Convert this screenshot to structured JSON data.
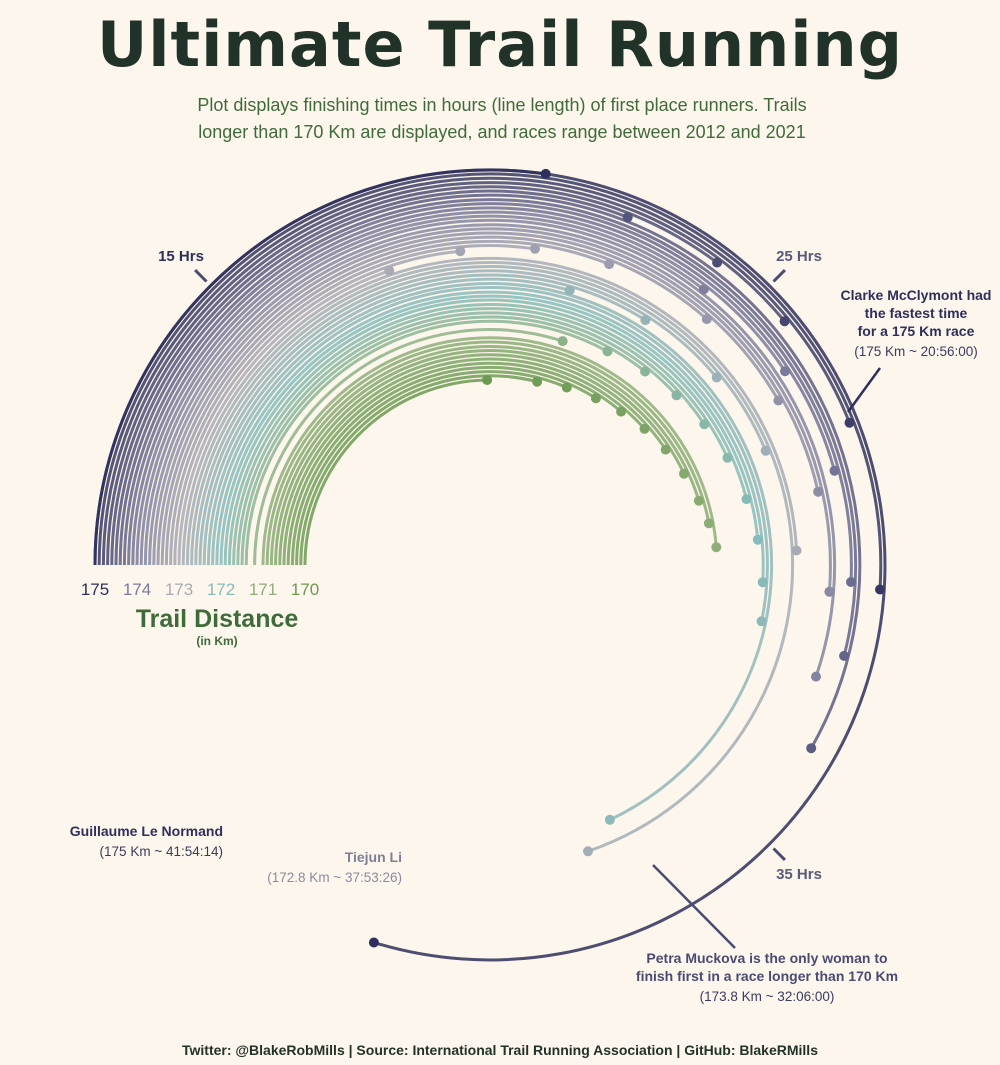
{
  "title": "Ultimate Trail Running",
  "subtitle_lines": [
    "Plot displays finishing times in hours (line length) of first place runners. Trails",
    "longer than 170 Km are displayed, and races range between 2012 and 2021"
  ],
  "caption": "Twitter: @BlakeRobMills | Source: International Trail Running Association | GitHub: BlakeRMills",
  "colors": {
    "background": "#fdf6ec",
    "title": "#213328",
    "green": "#6b9a52",
    "dist_palette": [
      "#6b9a52",
      "#8fae7a",
      "#85bcbc",
      "#a9aab4",
      "#7a7b9c",
      "#2e2f5c"
    ]
  },
  "chart_data": {
    "type": "radial-arc",
    "title": "Ultimate Trail Running",
    "axis_title": "Trail Distance",
    "axis_subtitle": "(in Km)",
    "distance_ticks": [
      "175",
      "174",
      "173",
      "172",
      "171",
      "170"
    ],
    "hour_ticks": [
      {
        "hours": 15,
        "label": "15 Hrs"
      },
      {
        "hours": 25,
        "label": "25 Hrs"
      },
      {
        "hours": 35,
        "label": "35 Hrs"
      }
    ],
    "series": [
      {
        "distance_km": 170.0,
        "hours": 19.9
      },
      {
        "distance_km": 170.1,
        "hours": 21.6
      },
      {
        "distance_km": 170.2,
        "hours": 22.6
      },
      {
        "distance_km": 170.3,
        "hours": 23.6
      },
      {
        "distance_km": 170.4,
        "hours": 24.5
      },
      {
        "distance_km": 170.5,
        "hours": 25.4
      },
      {
        "distance_km": 170.6,
        "hours": 26.3
      },
      {
        "distance_km": 170.7,
        "hours": 27.2
      },
      {
        "distance_km": 170.8,
        "hours": 28.1
      },
      {
        "distance_km": 170.9,
        "hours": 28.8
      },
      {
        "distance_km": 171.0,
        "hours": 29.5
      },
      {
        "distance_km": 171.2,
        "hours": 22.0
      },
      {
        "distance_km": 171.4,
        "hours": 23.2
      },
      {
        "distance_km": 171.5,
        "hours": 24.3
      },
      {
        "distance_km": 171.6,
        "hours": 25.3
      },
      {
        "distance_km": 171.7,
        "hours": 26.3
      },
      {
        "distance_km": 171.8,
        "hours": 27.3
      },
      {
        "distance_km": 171.9,
        "hours": 28.4
      },
      {
        "distance_km": 172.0,
        "hours": 29.4
      },
      {
        "distance_km": 172.1,
        "hours": 30.4
      },
      {
        "distance_km": 172.2,
        "hours": 31.3
      },
      {
        "distance_km": 172.3,
        "hours": 37.2
      },
      {
        "distance_km": 172.4,
        "hours": 21.8
      },
      {
        "distance_km": 172.5,
        "hours": 23.6
      },
      {
        "distance_km": 172.6,
        "hours": 25.6
      },
      {
        "distance_km": 172.7,
        "hours": 27.5
      },
      {
        "distance_km": 172.8,
        "hours": 37.9
      },
      {
        "distance_km": 172.9,
        "hours": 29.7
      },
      {
        "distance_km": 173.0,
        "hours": 17.9
      },
      {
        "distance_km": 173.1,
        "hours": 19.4
      },
      {
        "distance_km": 173.2,
        "hours": 20.9
      },
      {
        "distance_km": 173.3,
        "hours": 22.4
      },
      {
        "distance_km": 173.4,
        "hours": 24.6
      },
      {
        "distance_km": 173.5,
        "hours": 26.7
      },
      {
        "distance_km": 173.6,
        "hours": 28.6
      },
      {
        "distance_km": 173.7,
        "hours": 30.5
      },
      {
        "distance_km": 173.8,
        "hours": 32.1
      },
      {
        "distance_km": 173.9,
        "hours": 24.2
      },
      {
        "distance_km": 174.0,
        "hours": 26.3
      },
      {
        "distance_km": 174.1,
        "hours": 28.3
      },
      {
        "distance_km": 174.2,
        "hours": 30.3
      },
      {
        "distance_km": 174.3,
        "hours": 31.6
      },
      {
        "distance_km": 174.4,
        "hours": 33.3
      },
      {
        "distance_km": 174.5,
        "hours": 22.4
      },
      {
        "distance_km": 174.6,
        "hours": 24.1
      },
      {
        "distance_km": 174.7,
        "hours": 25.6
      },
      {
        "distance_km": 174.8,
        "hours": 27.6
      },
      {
        "distance_km": 174.9,
        "hours": 30.4
      },
      {
        "distance_km": 175.0,
        "hours": 20.9
      },
      {
        "distance_km": 175.0,
        "hours": 41.9
      }
    ]
  },
  "annotations": [
    {
      "id": "clarke",
      "lines": [
        "Clarke McClymont had",
        "the fastest time",
        "for a 175 Km race"
      ],
      "sub": "(175 Km ~ 20:56:00)",
      "distance_km": 175.0,
      "hours": 20.9
    },
    {
      "id": "guillaume",
      "lines": [
        "Guillaume Le Normand"
      ],
      "sub": "(175 Km ~ 41:54:14)",
      "distance_km": 175.0,
      "hours": 41.9
    },
    {
      "id": "tiejun",
      "lines": [
        "Tiejun Li"
      ],
      "sub": "(172.8 Km ~ 37:53:26)",
      "distance_km": 172.8,
      "hours": 37.9
    },
    {
      "id": "petra",
      "lines": [
        "Petra Muckova is the only woman to",
        "finish first in a race longer than 170 Km"
      ],
      "sub": "(173.8 Km ~ 32:06:00)",
      "distance_km": 173.8,
      "hours": 32.1
    }
  ]
}
